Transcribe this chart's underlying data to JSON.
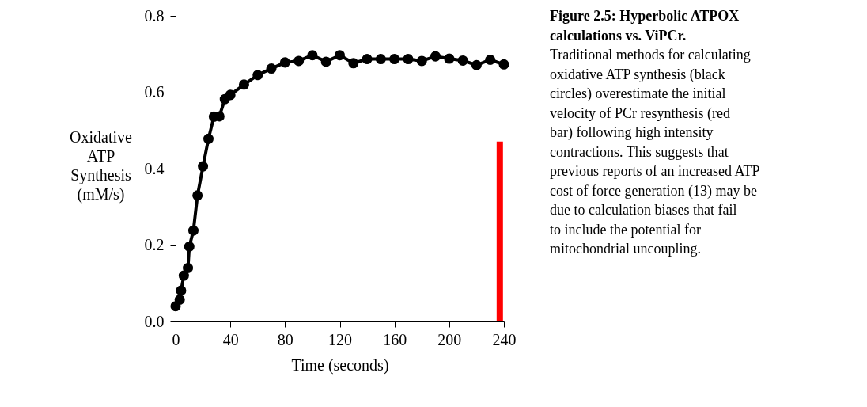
{
  "chart_data": {
    "type": "line",
    "title": "Figure 2.5: Hyperbolic ATPOX calculations vs. ViPCr.",
    "xlabel": "Time (seconds)",
    "ylabel": "Oxidative ATP Synthesis (mM/s)",
    "xlim": [
      0,
      240
    ],
    "xticks": [
      0,
      40,
      80,
      120,
      160,
      200,
      240
    ],
    "ylim": [
      0,
      0.8
    ],
    "yticks": [
      {
        "value": 0,
        "label": "0.0"
      },
      {
        "value": 0.2,
        "label": "0.2"
      },
      {
        "value": 0.4,
        "label": "0.4"
      },
      {
        "value": 0.6,
        "label": "0.6"
      },
      {
        "value": 0.8,
        "label": "0.8"
      }
    ],
    "grid": false,
    "marker": "circle",
    "line_style": "solid",
    "series": [
      {
        "color": "#000000",
        "x": [
          0,
          3,
          4,
          6,
          9,
          10,
          13,
          16,
          20,
          24,
          28,
          32,
          36,
          40,
          50,
          60,
          70,
          80,
          90,
          100,
          110,
          120,
          130,
          140,
          150,
          160,
          170,
          180,
          190,
          200,
          210,
          220,
          230,
          240
        ],
        "values": [
          0.04,
          0.057,
          0.081,
          0.12,
          0.14,
          0.196,
          0.238,
          0.33,
          0.406,
          0.478,
          0.536,
          0.537,
          0.582,
          0.593,
          0.62,
          0.645,
          0.662,
          0.678,
          0.682,
          0.697,
          0.68,
          0.697,
          0.676,
          0.687,
          0.687,
          0.687,
          0.687,
          0.682,
          0.694,
          0.688,
          0.683,
          0.671,
          0.685,
          0.673
        ]
      },
      {
        "type": "bar",
        "color": "#ff0000",
        "x": [
          237
        ],
        "values": [
          0.471
        ]
      }
    ],
    "annotations": [
      "Traditional methods for calculating oxidative ATP synthesis (black circles) overestimate the initial velocity of PCr resynthesis (red bar) following high intensity contractions. This suggests that previous reports of an increased ATP cost of force generation (13) may be due to calculation biases that fail to include the potential for mitochondrial uncoupling."
    ]
  }
}
